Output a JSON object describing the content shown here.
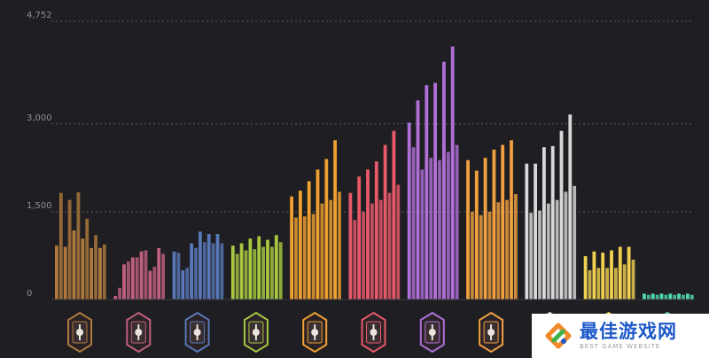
{
  "chart_data": {
    "type": "bar",
    "title": "",
    "xlabel": "",
    "ylabel": "",
    "ylim": [
      0,
      4752
    ],
    "y_ticks": [
      "0",
      "1,500",
      "3,000",
      "4,752"
    ],
    "y_tick_values": [
      0,
      1500,
      3000,
      4752
    ],
    "grid": true,
    "groups": [
      {
        "icon": "hand-emblem-icon",
        "color": "#b07a3c",
        "values": [
          920,
          1820,
          900,
          1700,
          1180,
          1830,
          1040,
          1380,
          880,
          1100,
          880,
          940
        ]
      },
      {
        "icon": "mask-emblem-icon",
        "color": "#c0607e",
        "values": [
          60,
          200,
          600,
          650,
          720,
          720,
          820,
          840,
          490,
          560,
          880,
          780
        ]
      },
      {
        "icon": "eye-emblem-icon",
        "color": "#5878b8",
        "values": [
          820,
          800,
          500,
          540,
          960,
          880,
          1160,
          980,
          1120,
          960,
          1120,
          960
        ]
      },
      {
        "icon": "skull-emblem-icon",
        "color": "#a8c840",
        "values": [
          920,
          780,
          960,
          840,
          1040,
          860,
          1080,
          900,
          1020,
          900,
          1100,
          980
        ]
      },
      {
        "icon": "dagger-emblem-icon",
        "color": "#f0a030",
        "values": [
          1760,
          1400,
          1860,
          1420,
          2020,
          1460,
          2220,
          1640,
          2400,
          1700,
          2720,
          1840
        ]
      },
      {
        "icon": "rabbit-emblem-icon",
        "color": "#e85a6a",
        "values": [
          1820,
          1360,
          2100,
          1500,
          2220,
          1640,
          2360,
          1700,
          2640,
          1820,
          2880,
          1960
        ]
      },
      {
        "icon": "crown-emblem-icon",
        "color": "#b070d8",
        "values": [
          3020,
          2600,
          3400,
          2220,
          3660,
          2420,
          3700,
          2380,
          4060,
          2520,
          4320,
          2640
        ]
      },
      {
        "icon": "spider-emblem-icon",
        "color": "#f0a040",
        "values": [
          2380,
          1500,
          2200,
          1440,
          2420,
          1500,
          2560,
          1660,
          2640,
          1700,
          2720,
          1800
        ]
      },
      {
        "icon": "wolf-emblem-icon",
        "color": "#d8d8d8",
        "values": [
          2320,
          1480,
          2320,
          1520,
          2600,
          1640,
          2620,
          1700,
          2880,
          1840,
          3160,
          1940
        ]
      },
      {
        "icon": "crest-emblem-icon",
        "color": "#f0d050",
        "values": [
          740,
          500,
          820,
          540,
          800,
          540,
          840,
          540,
          900,
          600,
          900,
          680
        ]
      },
      {
        "icon": "mark-emblem-icon",
        "color": "#50d8b0",
        "values": [
          100,
          80,
          100,
          80,
          100,
          80,
          100,
          80,
          100,
          80,
          100,
          80
        ]
      }
    ]
  },
  "watermark": {
    "title": "最佳游戏网",
    "subtitle": "BEST GAME WEBSITE"
  }
}
